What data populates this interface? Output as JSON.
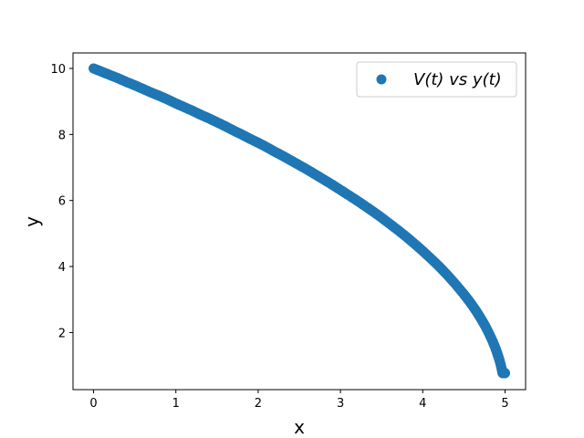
{
  "chart_data": {
    "type": "scatter",
    "title": "",
    "xlabel": "x",
    "ylabel": "y",
    "xlim": [
      -0.25,
      5.25
    ],
    "ylim": [
      0.27,
      10.47
    ],
    "xticks": [
      "0",
      "1",
      "2",
      "3",
      "4",
      "5"
    ],
    "yticks": [
      "2",
      "4",
      "6",
      "8",
      "10"
    ],
    "grid": false,
    "legend_position": "top-right",
    "marker_color": "#1f77b4",
    "series": [
      {
        "name": "V(t) vs y(t)",
        "x": [
          0.0,
          0.1,
          0.2,
          0.3,
          0.4,
          0.5,
          0.6,
          0.7,
          0.8,
          0.9,
          1.0,
          1.1,
          1.2,
          1.3,
          1.4,
          1.5,
          1.6,
          1.7,
          1.8,
          1.9,
          2.0,
          2.1,
          2.2,
          2.3,
          2.4,
          2.5,
          2.6,
          2.7,
          2.8,
          2.9,
          3.0,
          3.1,
          3.2,
          3.3,
          3.4,
          3.5,
          3.6,
          3.7,
          3.8,
          3.9,
          4.0,
          4.1,
          4.2,
          4.3,
          4.4,
          4.5,
          4.55,
          4.6,
          4.65,
          4.7,
          4.75,
          4.8,
          4.85,
          4.88,
          4.9,
          4.92,
          4.94,
          4.96,
          4.97,
          4.98,
          4.99,
          5.0
        ],
        "y": [
          10.0,
          9.9,
          9.8,
          9.7,
          9.59,
          9.49,
          9.38,
          9.27,
          9.17,
          9.06,
          8.94,
          8.83,
          8.72,
          8.6,
          8.49,
          8.37,
          8.25,
          8.12,
          8.0,
          7.87,
          7.75,
          7.62,
          7.48,
          7.35,
          7.21,
          7.07,
          6.93,
          6.78,
          6.63,
          6.48,
          6.32,
          6.16,
          6.0,
          5.83,
          5.66,
          5.48,
          5.29,
          5.1,
          4.9,
          4.69,
          4.47,
          4.24,
          4.0,
          3.74,
          3.46,
          3.16,
          3.0,
          2.83,
          2.65,
          2.45,
          2.24,
          2.0,
          1.73,
          1.55,
          1.41,
          1.26,
          1.1,
          0.89,
          0.77,
          0.77,
          0.77,
          0.77
        ]
      }
    ]
  }
}
